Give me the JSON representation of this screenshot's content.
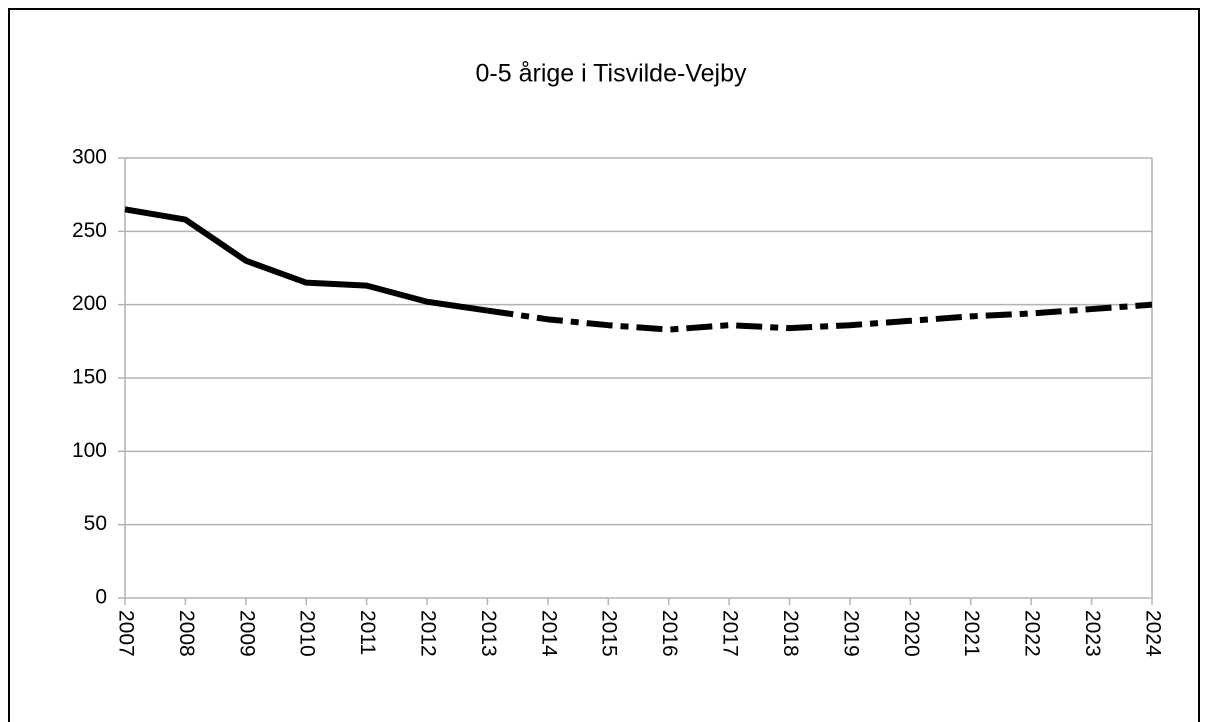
{
  "chart_data": {
    "type": "line",
    "title": "0-5 årige i Tisvilde-Vejby",
    "categories": [
      "2007",
      "2008",
      "2009",
      "2010",
      "2011",
      "2012",
      "2013",
      "2014",
      "2015",
      "2016",
      "2017",
      "2018",
      "2019",
      "2020",
      "2021",
      "2022",
      "2023",
      "2024"
    ],
    "series": [
      {
        "color": "#000000",
        "style": "solid",
        "values": [
          265,
          258,
          230,
          215,
          213,
          202,
          196,
          null,
          null,
          null,
          null,
          null,
          null,
          null,
          null,
          null,
          null,
          null
        ]
      },
      {
        "color": "#000000",
        "style": "dashdot",
        "values": [
          null,
          null,
          null,
          null,
          null,
          null,
          196,
          190,
          186,
          183,
          186,
          184,
          186,
          189,
          192,
          194,
          197,
          200
        ]
      }
    ],
    "ylim": [
      0,
      300
    ],
    "yticks": [
      0,
      50,
      100,
      150,
      200,
      250,
      300
    ],
    "grid": true
  }
}
